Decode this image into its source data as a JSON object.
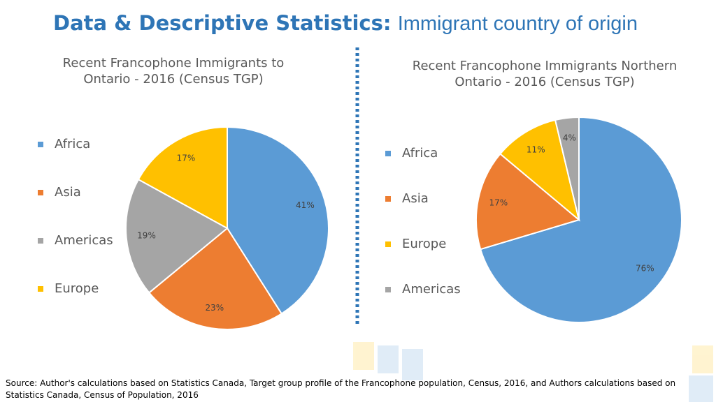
{
  "header": {
    "title_bold": "Data & Descriptive Statistics:",
    "title_rest": "Immigrant country of origin"
  },
  "chart_data": [
    {
      "type": "pie",
      "title": "Recent Francophone Immigrants to Ontario - 2016 (Census TGP)",
      "categories": [
        "Africa",
        "Asia",
        "Americas",
        "Europe"
      ],
      "values": [
        41,
        23,
        19,
        17
      ],
      "value_labels": [
        "41%",
        "23%",
        "19%",
        "17%"
      ],
      "colors": [
        "#5b9bd5",
        "#ed7d31",
        "#a5a5a5",
        "#ffc000"
      ],
      "legend": "left"
    },
    {
      "type": "pie",
      "title": "Recent Francophone Immigrants Northern Ontario - 2016 (Census TGP)",
      "categories": [
        "Africa",
        "Asia",
        "Europe",
        "Americas"
      ],
      "values": [
        76,
        17,
        11,
        4
      ],
      "value_labels": [
        "76%",
        "17%",
        "11%",
        "4%"
      ],
      "colors": [
        "#5b9bd5",
        "#ed7d31",
        "#ffc000",
        "#a5a5a5"
      ],
      "legend": "left"
    }
  ],
  "footer": {
    "source": "Source: Author's calculations based on Statistics Canada, Target group profile of the Francophone population, Census, 2016, and Authors calculations based on Statistics Canada, Census of Population, 2016"
  }
}
